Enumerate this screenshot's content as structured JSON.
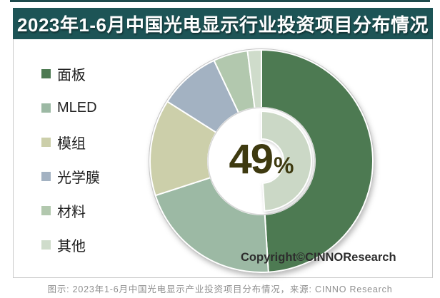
{
  "header": {
    "title": "2023年1-6月中国光电显示行业投资项目分布情况",
    "bg_color": "#1d5456",
    "text_color": "#ffffff"
  },
  "legend": {
    "items": [
      {
        "label": "面板",
        "color": "#4d7a52"
      },
      {
        "label": "MLED",
        "color": "#9cb9a4"
      },
      {
        "label": "模组",
        "color": "#cccfaa"
      },
      {
        "label": "光学膜",
        "color": "#a3b2c2"
      },
      {
        "label": "材料",
        "color": "#b2c8ae"
      },
      {
        "label": "其他",
        "color": "#cfdccb"
      }
    ]
  },
  "chart_data": {
    "type": "pie",
    "subtype": "donut",
    "title": "2023年1-6月中国光电显示行业投资项目分布情况",
    "categories": [
      "面板",
      "MLED",
      "模组",
      "光学膜",
      "材料",
      "其他"
    ],
    "values": [
      49,
      21,
      14,
      9,
      5,
      2
    ],
    "unit": "%",
    "colors": [
      "#4d7a52",
      "#9cb9a4",
      "#cccfaa",
      "#a3b2c2",
      "#b2c8ae",
      "#cfdccb"
    ],
    "start_angle_deg": 0,
    "direction": "clockwise",
    "legend_position": "left",
    "center_label": {
      "value": "49",
      "unit": "%",
      "color": "#3e3a10"
    },
    "inner_arc": {
      "percent": 49,
      "color": "#cbd8c6"
    }
  },
  "copyright": "Copyright©CINNOResearch",
  "caption": "图示: 2023年1-6月中国光电显示产业投资项目分布情况，来源: CINNO Research"
}
